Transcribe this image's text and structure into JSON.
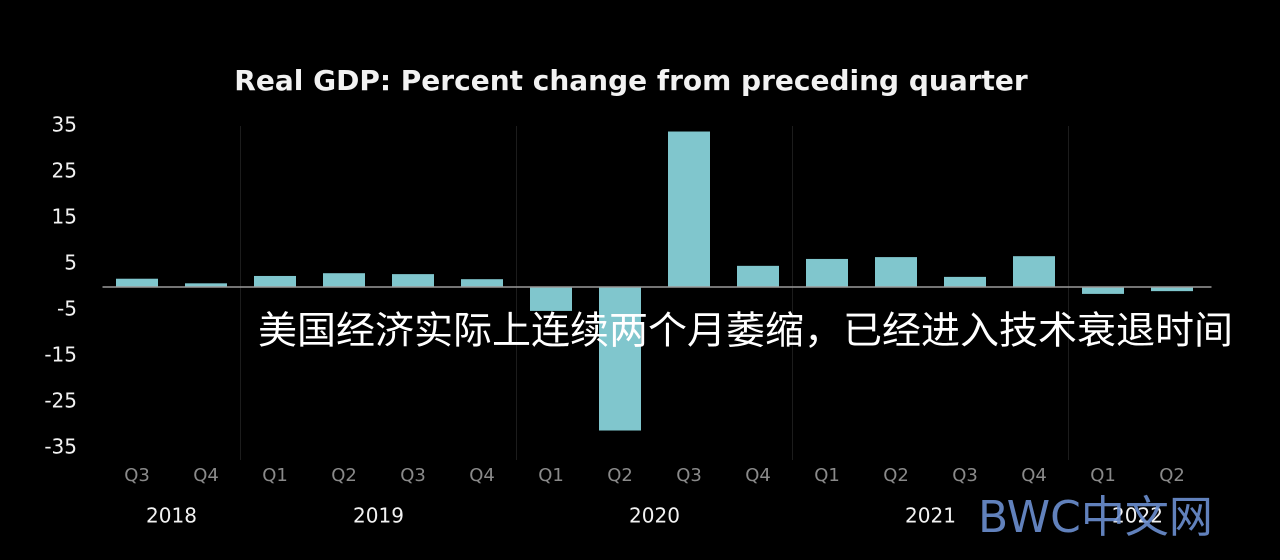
{
  "chart_data": {
    "type": "bar",
    "title": "Real GDP:  Percent change from preceding quarter",
    "categories": [
      "Q3",
      "Q4",
      "Q1",
      "Q2",
      "Q3",
      "Q4",
      "Q1",
      "Q2",
      "Q3",
      "Q4",
      "Q1",
      "Q2",
      "Q3",
      "Q4",
      "Q1",
      "Q2"
    ],
    "years": [
      "2018",
      "2018",
      "2019",
      "2019",
      "2019",
      "2019",
      "2020",
      "2020",
      "2020",
      "2020",
      "2021",
      "2021",
      "2021",
      "2021",
      "2022",
      "2022"
    ],
    "values": [
      1.8,
      0.8,
      2.4,
      3.0,
      2.8,
      1.7,
      -5.2,
      -31.2,
      33.8,
      4.6,
      6.1,
      6.5,
      2.2,
      6.7,
      -1.5,
      -0.9
    ],
    "color": "#80c6cd",
    "ylim": [
      -35,
      35
    ],
    "yticks": [
      35,
      25,
      15,
      5,
      -5,
      -15,
      -25,
      -35
    ],
    "grid": false,
    "annotation": "美国经济实际上连续两个月萎缩，已经进入技术衰退时间",
    "watermark": "BWC中文网"
  }
}
